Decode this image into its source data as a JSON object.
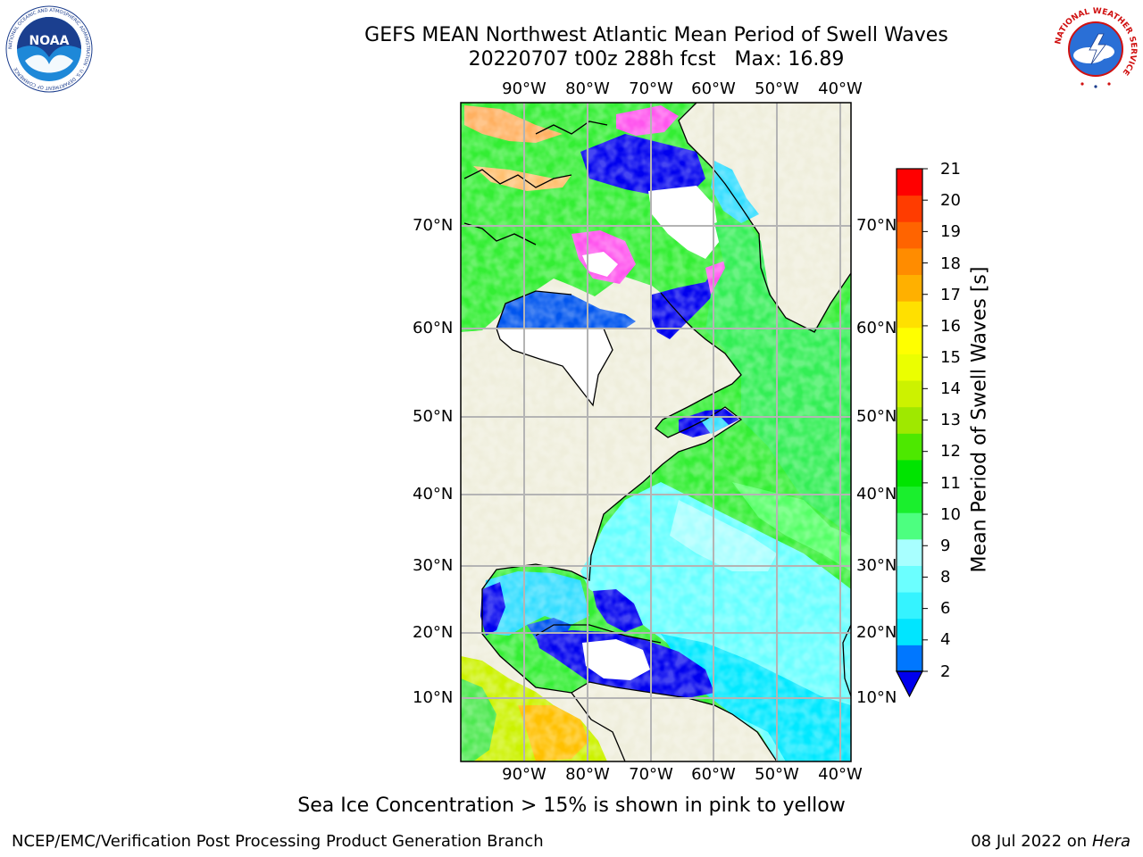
{
  "header": {
    "title_line1": "GEFS MEAN Northwest Atlantic Mean Period of Swell Waves",
    "title_line2": "20220707 t00z 288h fcst   Max: 16.89"
  },
  "logos": {
    "left": "noaa-logo",
    "right": "nws-logo",
    "noaa_text": "NOAA",
    "noaa_ring_text": "NATIONAL OCEANIC AND ATMOSPHERIC ADMINISTRATION · U.S. DEPARTMENT OF COMMERCE",
    "nws_ring_text": "NATIONAL WEATHER SERVICE"
  },
  "map": {
    "lon_labels": [
      "90°W",
      "80°W",
      "70°W",
      "60°W",
      "50°W",
      "40°W"
    ],
    "lat_labels": [
      "70°N",
      "60°N",
      "50°N",
      "40°N",
      "30°N",
      "20°N",
      "10°N"
    ],
    "colors": {
      "land": "#efeedc",
      "frame": "#000000",
      "grid": "#b4b4b4"
    }
  },
  "colorbar": {
    "title": "Mean Period of Swell Waves [s]",
    "tick_labels": [
      "21",
      "20",
      "19",
      "18",
      "17",
      "16",
      "15",
      "14",
      "13",
      "12",
      "11",
      "10",
      "9",
      "8",
      "6",
      "4",
      "2"
    ],
    "colors_bottom_to_top": [
      "#0077ff",
      "#00e5ff",
      "#35f3ff",
      "#6bffff",
      "#a8ffff",
      "#4dff80",
      "#1aef2d",
      "#00e400",
      "#4de800",
      "#9fe800",
      "#ccf200",
      "#ebff00",
      "#ffff00",
      "#ffe000",
      "#ffb000",
      "#ff8c00",
      "#ff6400",
      "#ff3c00",
      "#ff0000"
    ],
    "extend_color": "#0000ee"
  },
  "captions": {
    "ice_note": "Sea Ice Concentration > 15% is shown in pink to yellow",
    "footer_left": "NCEP/EMC/Verification Post Processing Product Generation Branch",
    "footer_date": "08 Jul 2022 on ",
    "footer_host": "Hera"
  }
}
